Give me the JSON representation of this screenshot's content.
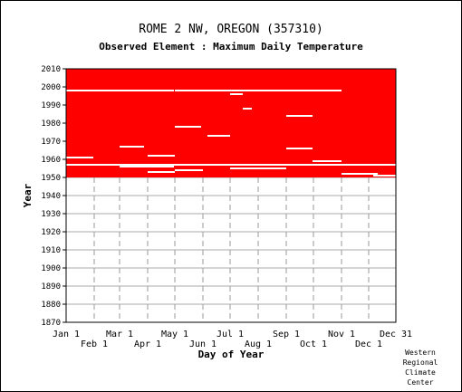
{
  "station_title": "ROME 2 NW, OREGON   (357310)",
  "element_subtitle": "Observed Element : Maximum Daily Temperature",
  "attribution": [
    "Western",
    "Regional",
    "Climate",
    "Center"
  ],
  "colors": {
    "data": "#ff0000",
    "gap": "#ffffff",
    "grid_vertical": "#999999",
    "grid_horizontal": "#aaaaaa"
  },
  "chart_data": {
    "type": "heatmap",
    "title": "ROME 2 NW, OREGON   (357310)",
    "subtitle": "Observed Element : Maximum Daily Temperature",
    "xlabel": "Day of Year",
    "ylabel": "Year",
    "ylim": [
      1870,
      2010
    ],
    "xlim": [
      1,
      365
    ],
    "grid": true,
    "y_ticks": [
      2010,
      2000,
      1990,
      1980,
      1970,
      1960,
      1950,
      1940,
      1930,
      1920,
      1910,
      1900,
      1890,
      1880,
      1870
    ],
    "x_ticks_upper": [
      {
        "label": "Jan 1",
        "day": 1
      },
      {
        "label": "Mar 1",
        "day": 60
      },
      {
        "label": "May 1",
        "day": 121
      },
      {
        "label": "Jul 1",
        "day": 182
      },
      {
        "label": "Sep 1",
        "day": 244
      },
      {
        "label": "Nov 1",
        "day": 305
      },
      {
        "label": "Dec 31",
        "day": 365
      }
    ],
    "x_ticks_lower": [
      {
        "label": "Feb 1",
        "day": 32
      },
      {
        "label": "Apr 1",
        "day": 91
      },
      {
        "label": "Jun 1",
        "day": 152
      },
      {
        "label": "Aug 1",
        "day": 213
      },
      {
        "label": "Oct 1",
        "day": 274
      },
      {
        "label": "Dec 1",
        "day": 335
      }
    ],
    "record_years": [
      1950,
      2010
    ],
    "missing_spans": [
      {
        "year": 1998,
        "start": 1,
        "end": 120
      },
      {
        "year": 1998,
        "start": 121,
        "end": 235
      },
      {
        "year": 1998,
        "start": 235,
        "end": 305
      },
      {
        "year": 1996,
        "start": 182,
        "end": 196
      },
      {
        "year": 1988,
        "start": 196,
        "end": 206
      },
      {
        "year": 1984,
        "start": 244,
        "end": 273
      },
      {
        "year": 1978,
        "start": 121,
        "end": 150
      },
      {
        "year": 1973,
        "start": 157,
        "end": 182
      },
      {
        "year": 1967,
        "start": 60,
        "end": 87
      },
      {
        "year": 1966,
        "start": 244,
        "end": 273
      },
      {
        "year": 1962,
        "start": 91,
        "end": 121
      },
      {
        "year": 1961,
        "start": 1,
        "end": 31
      },
      {
        "year": 1959,
        "start": 273,
        "end": 305
      },
      {
        "year": 1957,
        "start": 1,
        "end": 365
      },
      {
        "year": 1956,
        "start": 60,
        "end": 120
      },
      {
        "year": 1955,
        "start": 182,
        "end": 244
      },
      {
        "year": 1954,
        "start": 121,
        "end": 152
      },
      {
        "year": 1953,
        "start": 91,
        "end": 121
      },
      {
        "year": 1952,
        "start": 305,
        "end": 345
      },
      {
        "year": 1951,
        "start": 340,
        "end": 365
      }
    ]
  }
}
